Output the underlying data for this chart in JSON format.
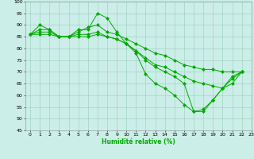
{
  "background_color": "#cceee8",
  "grid_color": "#99ccbb",
  "line_color": "#00aa00",
  "marker": "D",
  "marker_size": 2.0,
  "marker_lw": 0.5,
  "line_width": 0.7,
  "xlabel": "Humidité relative (%)",
  "xlabel_color": "#00aa00",
  "xlabel_fontsize": 5.5,
  "xlabel_bold": true,
  "xlim": [
    -0.5,
    23
  ],
  "ylim": [
    45,
    100
  ],
  "yticks": [
    45,
    50,
    55,
    60,
    65,
    70,
    75,
    80,
    85,
    90,
    95,
    100
  ],
  "xticks": [
    0,
    1,
    2,
    3,
    4,
    5,
    6,
    7,
    8,
    9,
    10,
    11,
    12,
    13,
    14,
    15,
    16,
    17,
    18,
    19,
    20,
    21,
    22,
    23
  ],
  "tick_fontsize": 4.5,
  "series": [
    [
      86,
      90,
      88,
      85,
      85,
      88,
      88,
      95,
      93,
      87,
      82,
      78,
      69,
      65,
      63,
      60,
      56,
      53,
      53,
      58,
      63,
      67,
      70
    ],
    [
      86,
      88,
      88,
      85,
      85,
      87,
      89,
      90,
      87,
      86,
      84,
      82,
      80,
      78,
      77,
      75,
      73,
      72,
      71,
      71,
      70,
      70,
      70
    ],
    [
      86,
      87,
      87,
      85,
      85,
      86,
      86,
      87,
      85,
      84,
      82,
      79,
      76,
      73,
      72,
      70,
      68,
      66,
      65,
      64,
      63,
      65,
      70
    ],
    [
      86,
      86,
      86,
      85,
      85,
      85,
      85,
      86,
      85,
      84,
      82,
      79,
      75,
      72,
      70,
      68,
      65,
      53,
      54,
      58,
      63,
      68,
      70
    ]
  ]
}
